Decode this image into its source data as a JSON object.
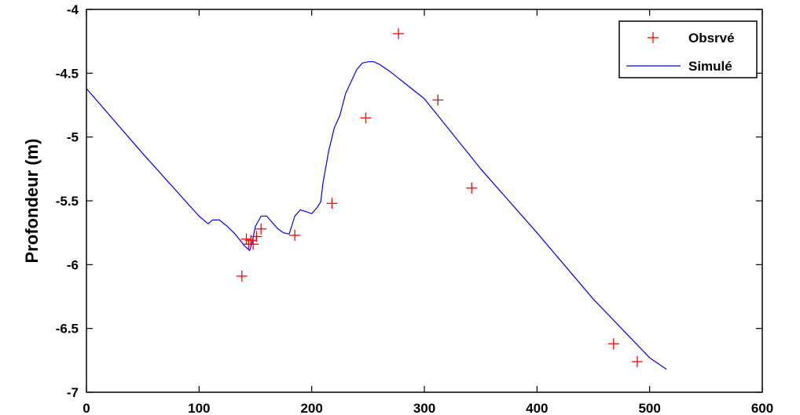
{
  "chart_data": {
    "type": "line",
    "title": "",
    "xlabel": "",
    "ylabel": "Profondeur (m)",
    "xlim": [
      0,
      600
    ],
    "ylim": [
      -7,
      -4
    ],
    "xticks": [
      0,
      100,
      200,
      300,
      400,
      500,
      600
    ],
    "yticks": [
      -4,
      -4.5,
      -5,
      -5.5,
      -6,
      -6.5,
      -7
    ],
    "xtick_labels": [
      "0",
      "100",
      "200",
      "300",
      "400",
      "500",
      "600"
    ],
    "ytick_labels": [
      "-4",
      "-4.5",
      "-5",
      "-5.5",
      "-6",
      "-6.5",
      "-7"
    ],
    "grid": false,
    "legend_position": "top-right",
    "series": [
      {
        "name": "Obsrvé",
        "kind": "scatter",
        "marker": "plus",
        "color": "#ff0000",
        "x": [
          138,
          142,
          144,
          146,
          148,
          151,
          155,
          185,
          218,
          248,
          277,
          312,
          342,
          468,
          489
        ],
        "y": [
          -6.09,
          -5.8,
          -5.84,
          -5.81,
          -5.84,
          -5.78,
          -5.72,
          -5.77,
          -5.52,
          -4.85,
          -4.19,
          -4.71,
          -5.4,
          -6.62,
          -6.76
        ]
      },
      {
        "name": "Simulé",
        "kind": "line",
        "color": "#0000ff",
        "x": [
          0,
          50,
          100,
          108,
          112,
          118,
          125,
          132,
          140,
          145,
          147,
          150,
          155,
          160,
          165,
          170,
          175,
          180,
          185,
          190,
          200,
          205,
          208,
          210,
          215,
          220,
          225,
          230,
          240,
          245,
          250,
          255,
          260,
          270,
          300,
          350,
          400,
          450,
          500,
          515
        ],
        "y": [
          -4.62,
          -5.13,
          -5.62,
          -5.68,
          -5.65,
          -5.65,
          -5.7,
          -5.76,
          -5.85,
          -5.89,
          -5.83,
          -5.7,
          -5.62,
          -5.62,
          -5.67,
          -5.72,
          -5.75,
          -5.76,
          -5.62,
          -5.57,
          -5.6,
          -5.55,
          -5.51,
          -5.36,
          -5.11,
          -4.93,
          -4.83,
          -4.66,
          -4.47,
          -4.42,
          -4.41,
          -4.41,
          -4.43,
          -4.49,
          -4.7,
          -5.25,
          -5.75,
          -6.27,
          -6.73,
          -6.82
        ]
      }
    ]
  }
}
